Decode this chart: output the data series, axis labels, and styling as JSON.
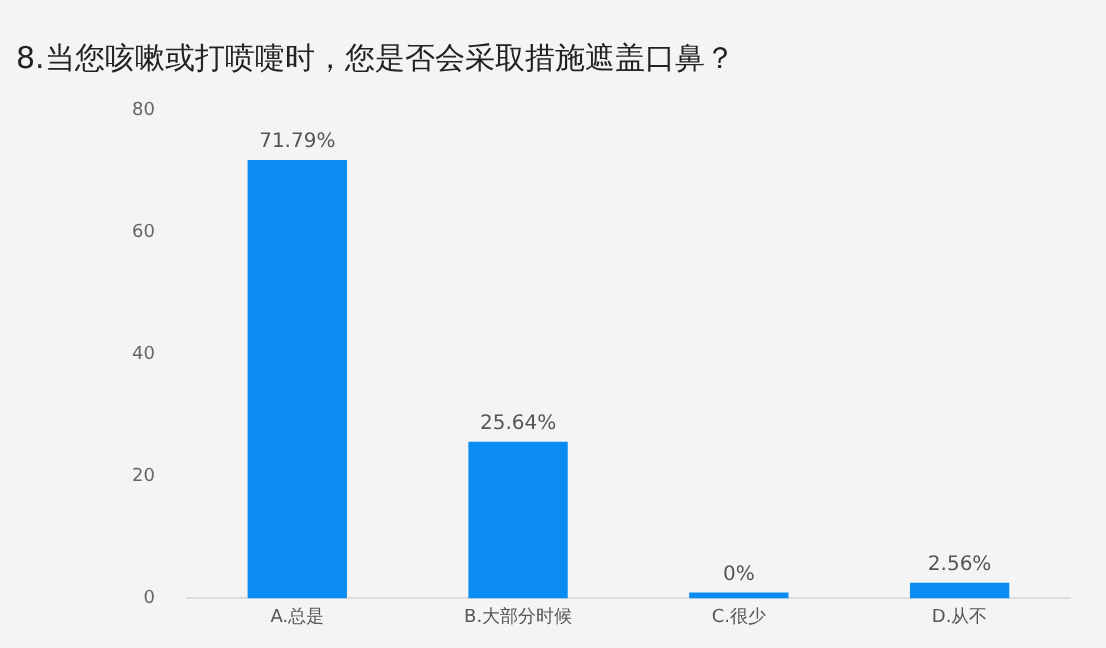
{
  "chart_data": {
    "type": "bar",
    "title": "8.当您咳嗽或打喷嚏时，您是否会采取措施遮盖口鼻？",
    "categories": [
      "A.总是",
      "B.大部分时候",
      "C.很少",
      "D.从不"
    ],
    "values": [
      71.79,
      25.64,
      0,
      2.56
    ],
    "value_labels": [
      "71.79%",
      "25.64%",
      "0%",
      "2.56%"
    ],
    "color": "#0a8cf0",
    "ylim": [
      0,
      80
    ],
    "yticks": [
      0,
      20,
      40,
      60,
      80
    ],
    "grid": false,
    "legend": false
  }
}
